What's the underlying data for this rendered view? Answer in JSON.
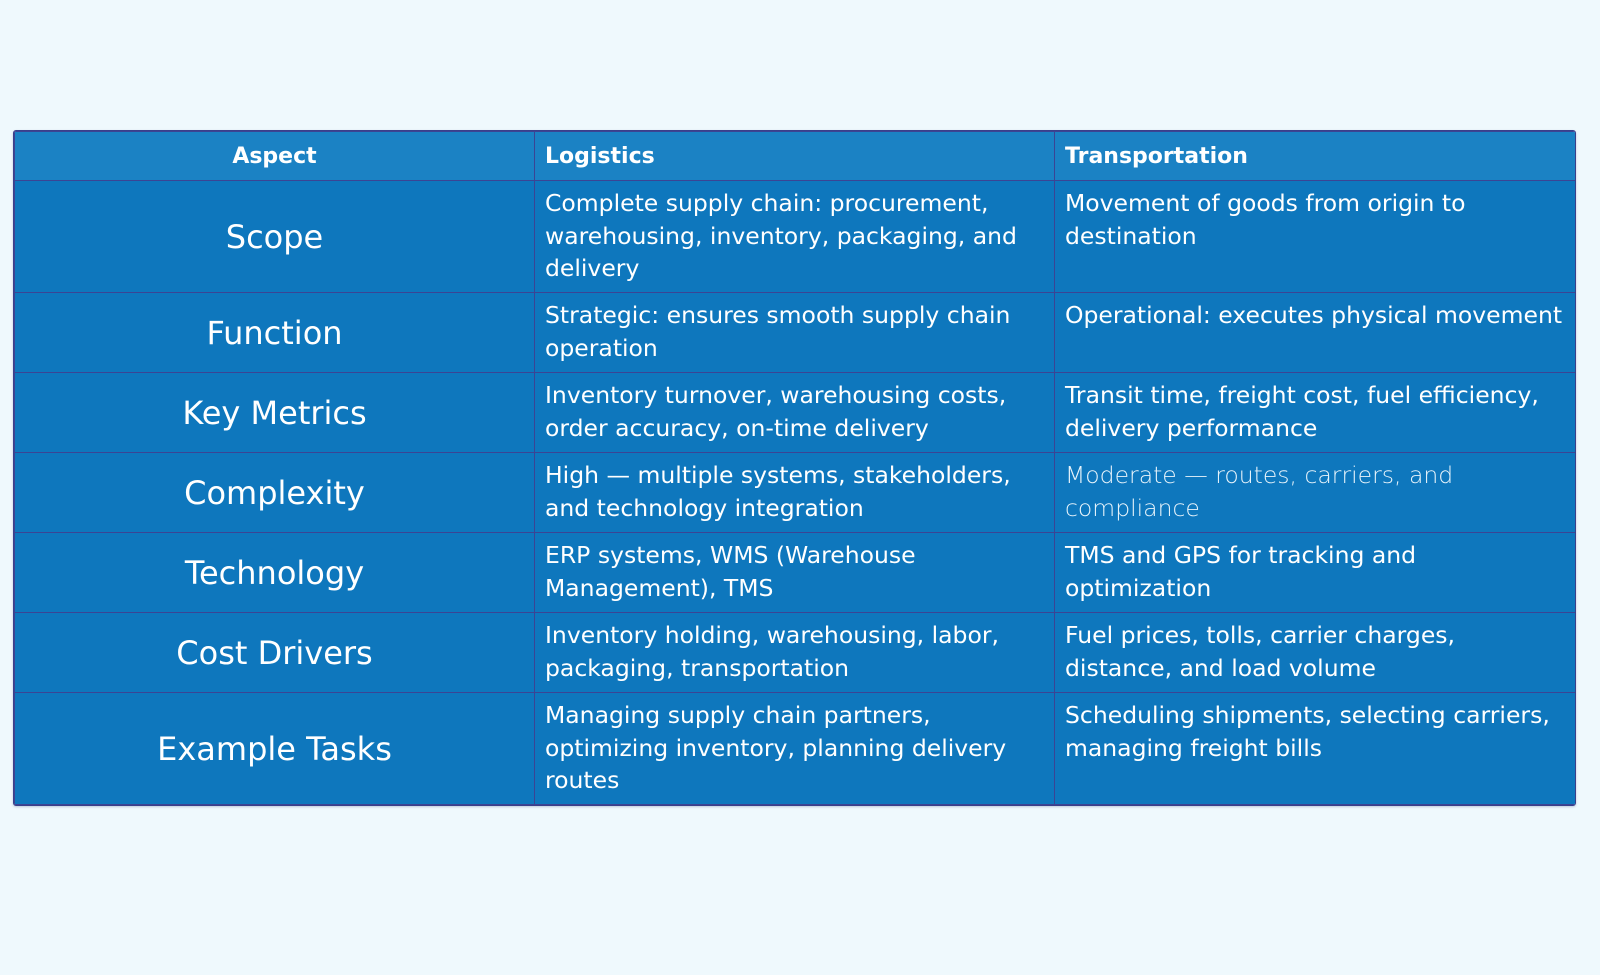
{
  "table": {
    "headers": {
      "aspect": "Aspect",
      "logistics": "Logistics",
      "transportation": "Transportation"
    },
    "rows": [
      {
        "aspect": "Scope",
        "logistics": "Complete supply chain: procurement, warehousing, inventory, packaging, and delivery",
        "transportation": "Movement of goods from origin to destination"
      },
      {
        "aspect": "Function",
        "logistics": "Strategic: ensures smooth supply chain operation",
        "transportation": "Operational: executes physical movement"
      },
      {
        "aspect": "Key Metrics",
        "logistics": "Inventory turnover, warehousing costs, order accuracy, on-time delivery",
        "transportation": "Transit time, freight cost, fuel efficiency, delivery performance"
      },
      {
        "aspect": "Complexity",
        "logistics": "High — multiple systems, stakeholders, and technology integration",
        "transportation": "Moderate — routes, carriers, and compliance"
      },
      {
        "aspect": "Technology",
        "logistics": "ERP systems, WMS (Warehouse Management), TMS",
        "transportation": "TMS and GPS for tracking and optimization"
      },
      {
        "aspect": "Cost Drivers",
        "logistics": "Inventory holding, warehousing, labor, packaging, transportation",
        "transportation": "Fuel prices, tolls, carrier charges, distance, and load volume"
      },
      {
        "aspect": "Example Tasks",
        "logistics": "Managing supply chain partners, optimizing inventory, planning delivery routes",
        "transportation": "Scheduling shipments, selecting carriers, managing freight bills"
      }
    ]
  },
  "colors": {
    "page_background": "#eff9fd",
    "header_background": "#1b82c4",
    "cell_background": "#0e77bd",
    "grid_lines": "#3b4494",
    "text": "#ffffff"
  }
}
